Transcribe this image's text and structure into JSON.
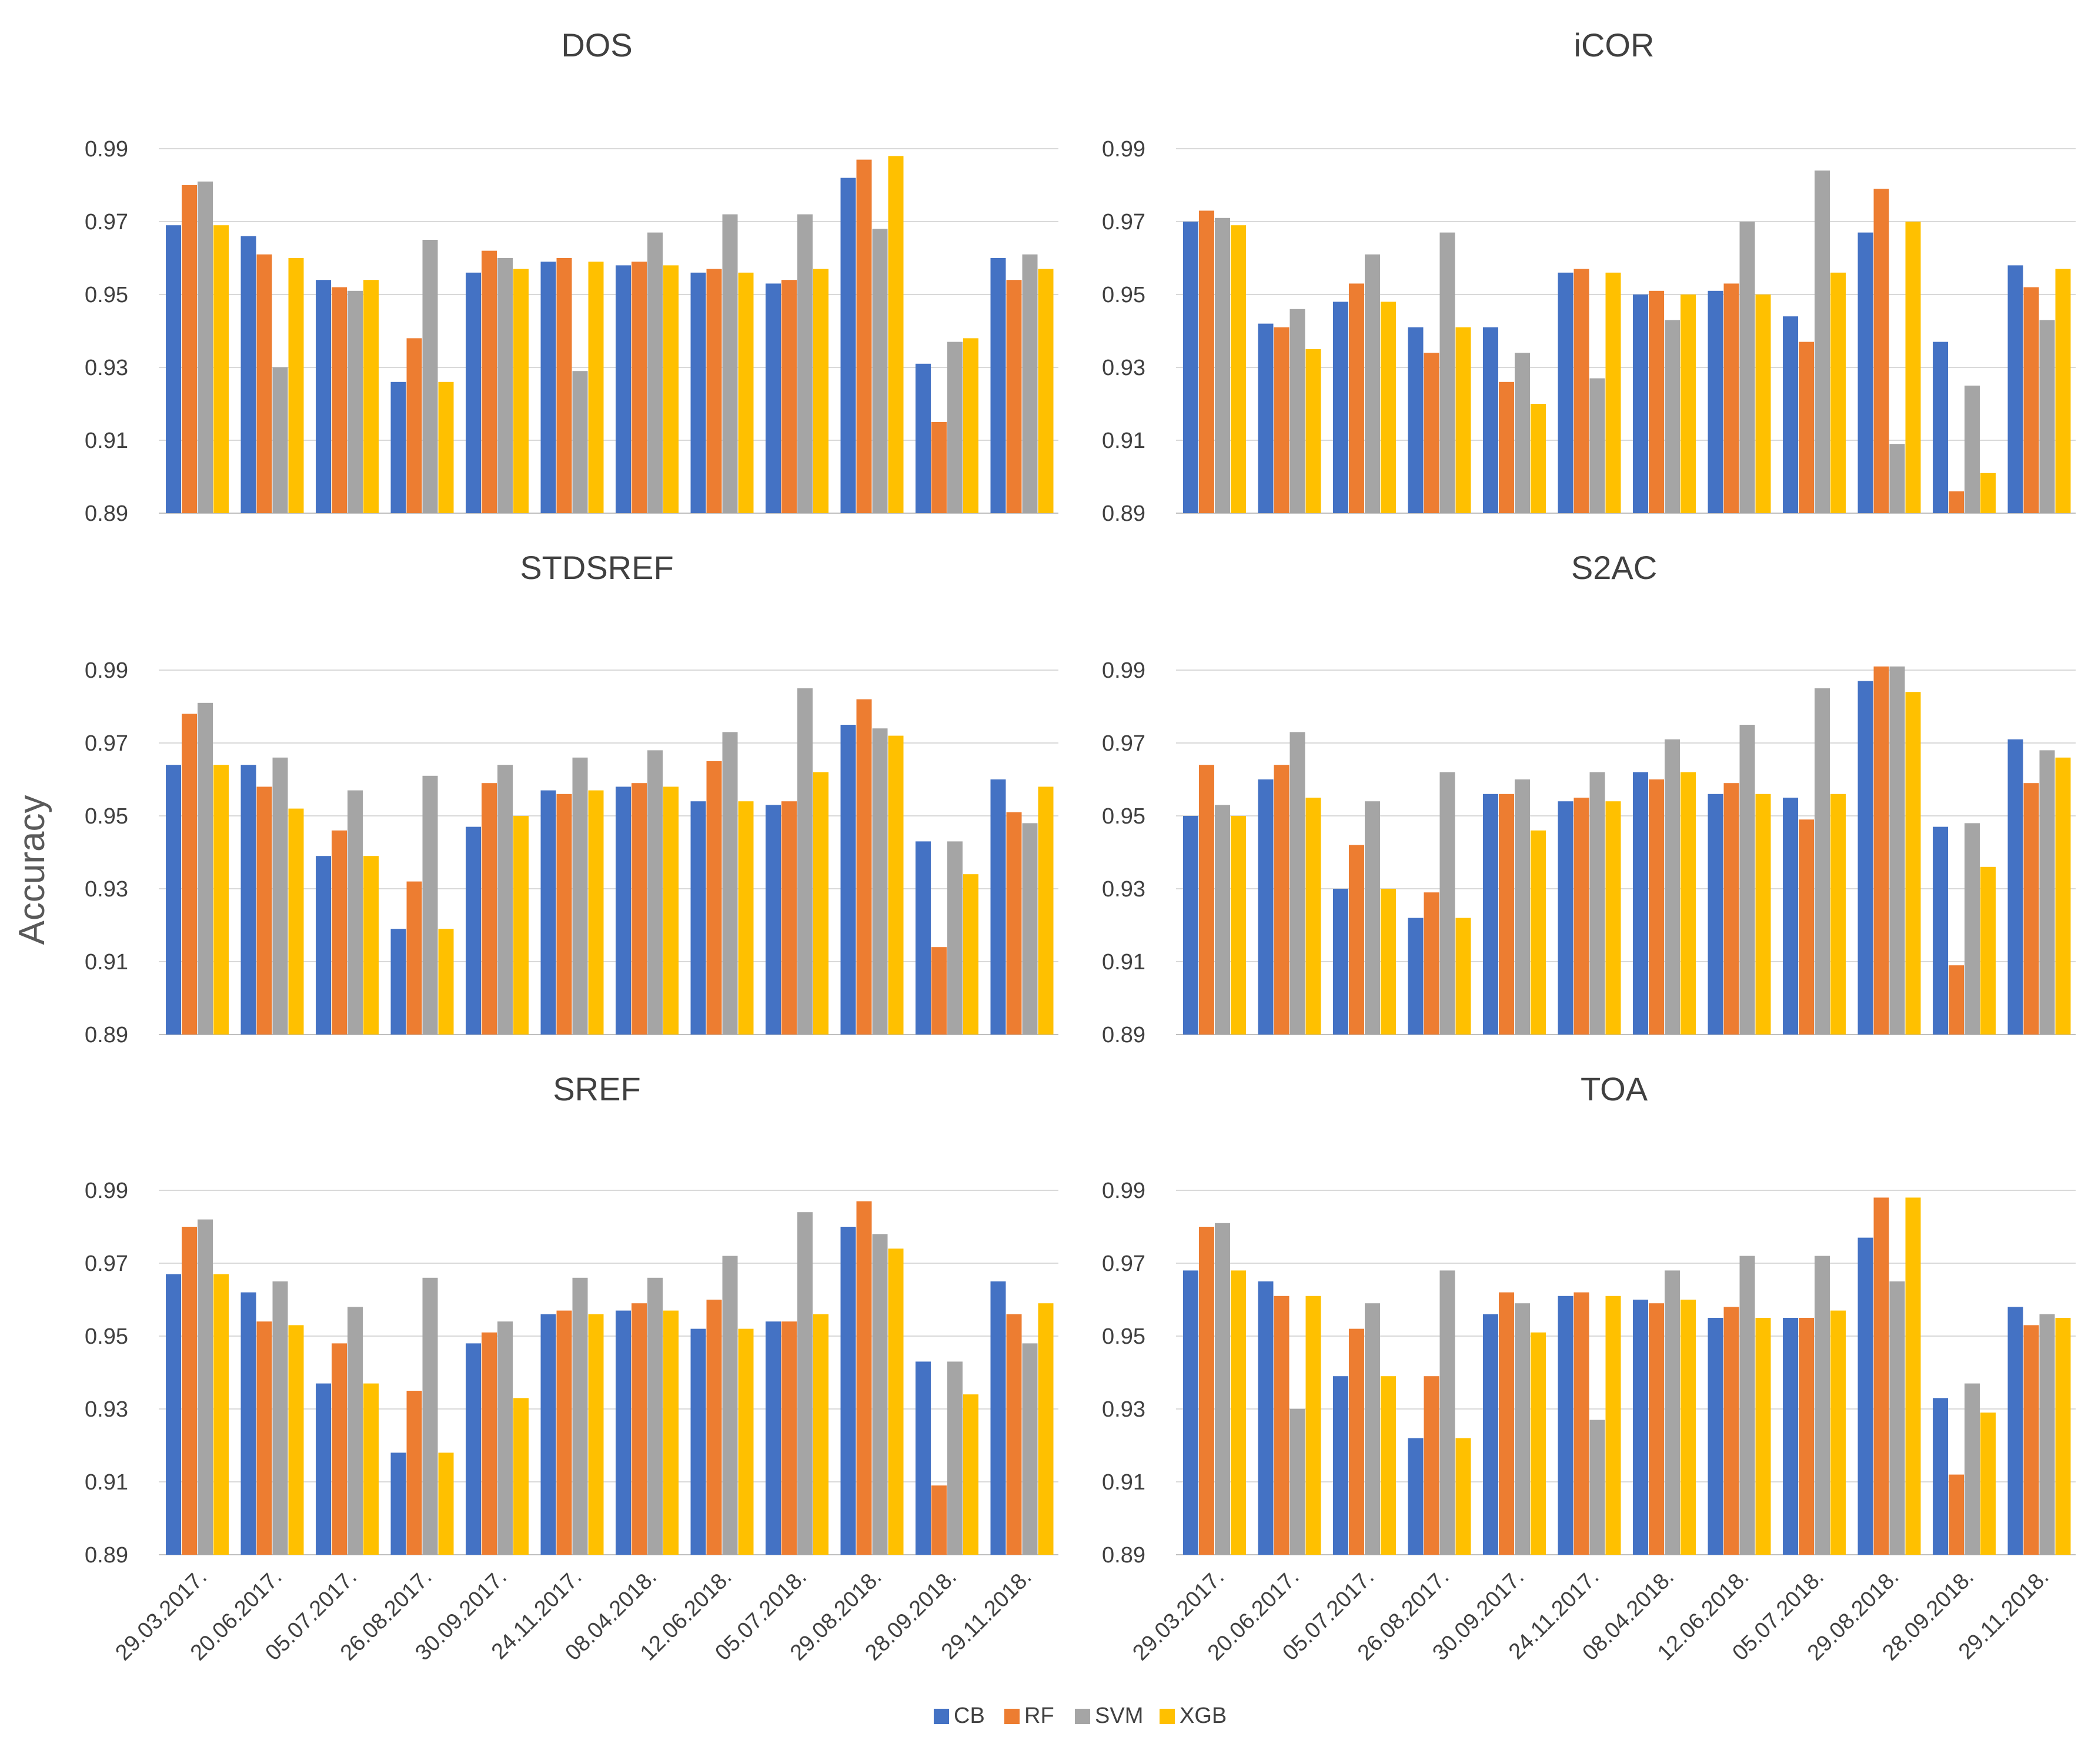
{
  "chart_data": {
    "type": "bar",
    "ylabel": "Accuracy",
    "ylim": [
      0.89,
      0.99
    ],
    "yticks": [
      "0.99",
      "0.97",
      "0.95",
      "0.93",
      "0.91",
      "0.89"
    ],
    "categories": [
      "29.03.2017.",
      "20.06.2017.",
      "05.07.2017.",
      "26.08.2017.",
      "30.09.2017.",
      "24.11.2017.",
      "08.04.2018.",
      "12.06.2018.",
      "05.07.2018.",
      "29.08.2018.",
      "28.09.2018.",
      "29.11.2018."
    ],
    "series_names": [
      "CB",
      "RF",
      "SVM",
      "XGB"
    ],
    "colors": {
      "CB": "#4472c4",
      "RF": "#ed7d31",
      "SVM": "#a5a5a5",
      "XGB": "#ffc000"
    },
    "legend": "bottom",
    "panels": [
      {
        "title": "DOS",
        "series": [
          {
            "name": "CB",
            "values": [
              0.969,
              0.966,
              0.954,
              0.926,
              0.956,
              0.959,
              0.958,
              0.956,
              0.953,
              0.982,
              0.931,
              0.96
            ]
          },
          {
            "name": "RF",
            "values": [
              0.98,
              0.961,
              0.952,
              0.938,
              0.962,
              0.96,
              0.959,
              0.957,
              0.954,
              0.987,
              0.915,
              0.954
            ]
          },
          {
            "name": "SVM",
            "values": [
              0.981,
              0.93,
              0.951,
              0.965,
              0.96,
              0.929,
              0.967,
              0.972,
              0.972,
              0.968,
              0.937,
              0.961
            ]
          },
          {
            "name": "XGB",
            "values": [
              0.969,
              0.96,
              0.954,
              0.926,
              0.957,
              0.959,
              0.958,
              0.956,
              0.957,
              0.988,
              0.938,
              0.957
            ]
          }
        ]
      },
      {
        "title": "iCOR",
        "series": [
          {
            "name": "CB",
            "values": [
              0.97,
              0.942,
              0.948,
              0.941,
              0.941,
              0.956,
              0.95,
              0.951,
              0.944,
              0.967,
              0.937,
              0.958
            ]
          },
          {
            "name": "RF",
            "values": [
              0.973,
              0.941,
              0.953,
              0.934,
              0.926,
              0.957,
              0.951,
              0.953,
              0.937,
              0.979,
              0.896,
              0.952
            ]
          },
          {
            "name": "SVM",
            "values": [
              0.971,
              0.946,
              0.961,
              0.967,
              0.934,
              0.927,
              0.943,
              0.97,
              0.984,
              0.909,
              0.925,
              0.943
            ]
          },
          {
            "name": "XGB",
            "values": [
              0.969,
              0.935,
              0.948,
              0.941,
              0.92,
              0.956,
              0.95,
              0.95,
              0.956,
              0.97,
              0.901,
              0.957
            ]
          }
        ]
      },
      {
        "title": "STDSREF",
        "series": [
          {
            "name": "CB",
            "values": [
              0.964,
              0.964,
              0.939,
              0.919,
              0.947,
              0.957,
              0.958,
              0.954,
              0.953,
              0.975,
              0.943,
              0.96
            ]
          },
          {
            "name": "RF",
            "values": [
              0.978,
              0.958,
              0.946,
              0.932,
              0.959,
              0.956,
              0.959,
              0.965,
              0.954,
              0.982,
              0.914,
              0.951
            ]
          },
          {
            "name": "SVM",
            "values": [
              0.981,
              0.966,
              0.957,
              0.961,
              0.964,
              0.966,
              0.968,
              0.973,
              0.985,
              0.974,
              0.943,
              0.948
            ]
          },
          {
            "name": "XGB",
            "values": [
              0.964,
              0.952,
              0.939,
              0.919,
              0.95,
              0.957,
              0.958,
              0.954,
              0.962,
              0.972,
              0.934,
              0.958
            ]
          }
        ]
      },
      {
        "title": "S2AC",
        "series": [
          {
            "name": "CB",
            "values": [
              0.95,
              0.96,
              0.93,
              0.922,
              0.956,
              0.954,
              0.962,
              0.956,
              0.955,
              0.987,
              0.947,
              0.971
            ]
          },
          {
            "name": "RF",
            "values": [
              0.964,
              0.964,
              0.942,
              0.929,
              0.956,
              0.955,
              0.96,
              0.959,
              0.949,
              0.991,
              0.909,
              0.959
            ]
          },
          {
            "name": "SVM",
            "values": [
              0.953,
              0.973,
              0.954,
              0.962,
              0.96,
              0.962,
              0.971,
              0.975,
              0.985,
              0.991,
              0.948,
              0.968
            ]
          },
          {
            "name": "XGB",
            "values": [
              0.95,
              0.955,
              0.93,
              0.922,
              0.946,
              0.954,
              0.962,
              0.956,
              0.956,
              0.984,
              0.936,
              0.966
            ]
          }
        ]
      },
      {
        "title": "SREF",
        "series": [
          {
            "name": "CB",
            "values": [
              0.967,
              0.962,
              0.937,
              0.918,
              0.948,
              0.956,
              0.957,
              0.952,
              0.954,
              0.98,
              0.943,
              0.965
            ]
          },
          {
            "name": "RF",
            "values": [
              0.98,
              0.954,
              0.948,
              0.935,
              0.951,
              0.957,
              0.959,
              0.96,
              0.954,
              0.987,
              0.909,
              0.956
            ]
          },
          {
            "name": "SVM",
            "values": [
              0.982,
              0.965,
              0.958,
              0.966,
              0.954,
              0.966,
              0.966,
              0.972,
              0.984,
              0.978,
              0.943,
              0.948
            ]
          },
          {
            "name": "XGB",
            "values": [
              0.967,
              0.953,
              0.937,
              0.918,
              0.933,
              0.956,
              0.957,
              0.952,
              0.956,
              0.974,
              0.934,
              0.959
            ]
          }
        ]
      },
      {
        "title": "TOA",
        "series": [
          {
            "name": "CB",
            "values": [
              0.968,
              0.965,
              0.939,
              0.922,
              0.956,
              0.961,
              0.96,
              0.955,
              0.955,
              0.977,
              0.933,
              0.958
            ]
          },
          {
            "name": "RF",
            "values": [
              0.98,
              0.961,
              0.952,
              0.939,
              0.962,
              0.962,
              0.959,
              0.958,
              0.955,
              0.988,
              0.912,
              0.953
            ]
          },
          {
            "name": "SVM",
            "values": [
              0.981,
              0.93,
              0.959,
              0.968,
              0.959,
              0.927,
              0.968,
              0.972,
              0.972,
              0.965,
              0.937,
              0.956
            ]
          },
          {
            "name": "XGB",
            "values": [
              0.968,
              0.961,
              0.939,
              0.922,
              0.951,
              0.961,
              0.96,
              0.955,
              0.957,
              0.988,
              0.929,
              0.955
            ]
          }
        ]
      }
    ]
  }
}
